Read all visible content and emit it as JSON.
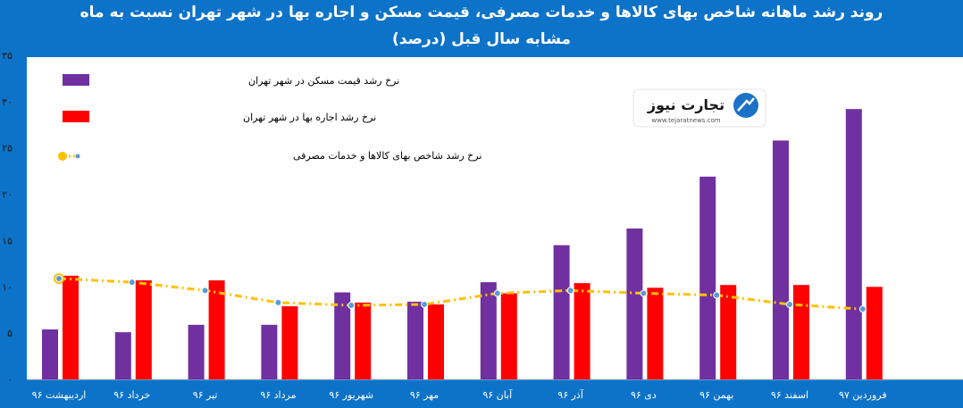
{
  "chart_data": {
    "type": "bar",
    "title": "روند رشد ماهانه شاخص بهای کالاها و خدمات مصرفی، قیمت مسکن و اجاره بها در شهر تهران نسبت به ماه",
    "subtitle": "مشابه سال قبل (درصد)",
    "categories": [
      "اردیبهشت ۹۶",
      "خرداد ۹۶",
      "تیر ۹۶",
      "مرداد ۹۶",
      "شهریور ۹۶",
      "مهر ۹۶",
      "آبان ۹۶",
      "آذر ۹۶",
      "دی ۹۶",
      "بهمن ۹۶",
      "اسفند ۹۶",
      "فروردین ۹۷"
    ],
    "yticks": [
      "۰",
      "۵",
      "۱۰",
      "۱۵",
      "۲۰",
      "۲۵",
      "۳۰",
      "۳۵"
    ],
    "ylim": [
      0,
      35
    ],
    "series": [
      {
        "name": "نرخ رشد قیمت مسکن در شهر تهران",
        "kind": "bar",
        "color": "#7030a0",
        "values": [
          5.4,
          5.1,
          5.9,
          5.9,
          9.4,
          8.4,
          10.5,
          14.5,
          16.3,
          21.9,
          25.8,
          29.2
        ]
      },
      {
        "name": "نرخ رشد اجاره بها در شهر تهران",
        "kind": "bar",
        "color": "#ff0000",
        "values": [
          11.2,
          10.7,
          10.7,
          7.9,
          8.3,
          8.1,
          9.3,
          10.4,
          9.9,
          10.2,
          10.2,
          10.0
        ]
      },
      {
        "name": "نرخ رشد شاخص بهای کالاها و خدمات مصرفی",
        "kind": "line",
        "color": "#ffc000",
        "values": [
          10.9,
          10.5,
          9.6,
          8.3,
          8.0,
          8.1,
          9.3,
          9.6,
          9.3,
          9.1,
          8.1,
          7.6
        ]
      }
    ],
    "grid": false,
    "legend": "top-left"
  },
  "logo": {
    "text": "تجارت نیوز",
    "url_text": "www.tejaratnews.com"
  }
}
